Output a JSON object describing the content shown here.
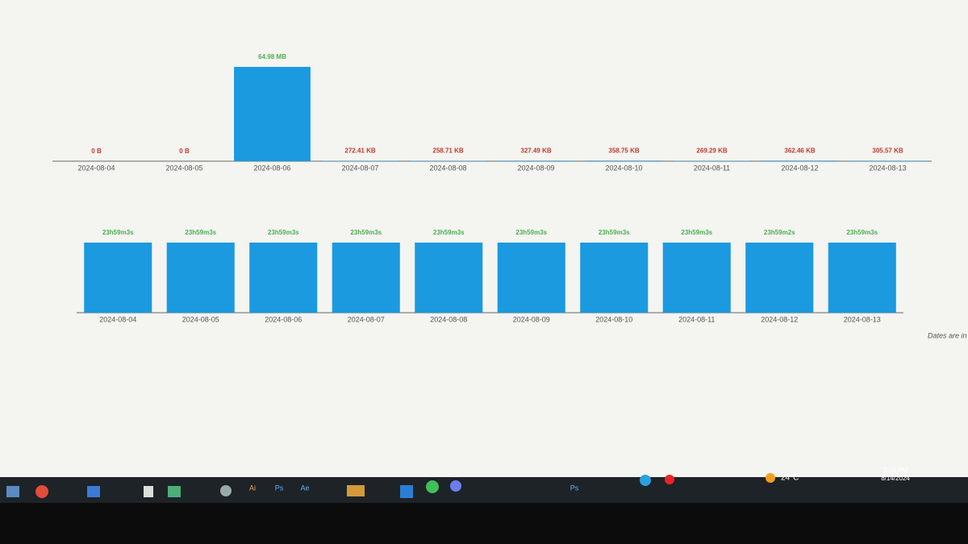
{
  "chart_data": [
    {
      "type": "bar",
      "categories": [
        "2024-08-04",
        "2024-08-05",
        "2024-08-06",
        "2024-08-07",
        "2024-08-08",
        "2024-08-09",
        "2024-08-10",
        "2024-08-11",
        "2024-08-12",
        "2024-08-13"
      ],
      "values": [
        0,
        0,
        64980,
        272.41,
        258.71,
        327.49,
        358.75,
        269.29,
        362.46,
        305.57
      ],
      "value_labels": [
        "0 B",
        "0 B",
        "64.98 MB",
        "272.41 KB",
        "258.71 KB",
        "327.49 KB",
        "358.75 KB",
        "269.29 KB",
        "362.46 KB",
        "305.57 KB"
      ],
      "color": "#1b9ae0",
      "label_colors": [
        "#c0392b",
        "#c0392b",
        "#4caf50",
        "#c0392b",
        "#c0392b",
        "#c0392b",
        "#c0392b",
        "#c0392b",
        "#c0392b",
        "#c0392b"
      ]
    },
    {
      "type": "bar",
      "categories": [
        "2024-08-04",
        "2024-08-05",
        "2024-08-06",
        "2024-08-07",
        "2024-08-08",
        "2024-08-09",
        "2024-08-10",
        "2024-08-11",
        "2024-08-12",
        "2024-08-13"
      ],
      "values": [
        86343,
        86343,
        86343,
        86343,
        86343,
        86343,
        86343,
        86343,
        86342,
        86343
      ],
      "value_labels": [
        "23h59m3s",
        "23h59m3s",
        "23h59m3s",
        "23h59m3s",
        "23h59m3s",
        "23h59m3s",
        "23h59m3s",
        "23h59m3s",
        "23h59m2s",
        "23h59m3s"
      ],
      "color": "#1b9ae0",
      "label_colors": [
        "#4caf50",
        "#4caf50",
        "#4caf50",
        "#4caf50",
        "#4caf50",
        "#4caf50",
        "#4caf50",
        "#4caf50",
        "#4caf50",
        "#4caf50"
      ]
    }
  ],
  "footnote": "Dates are in UTC",
  "taskbar": {
    "apps": [
      "Ai",
      "Ps",
      "Ae",
      "Ps"
    ],
    "weather": "24°C",
    "time": "7:56 PM",
    "date": "8/14/2024"
  }
}
